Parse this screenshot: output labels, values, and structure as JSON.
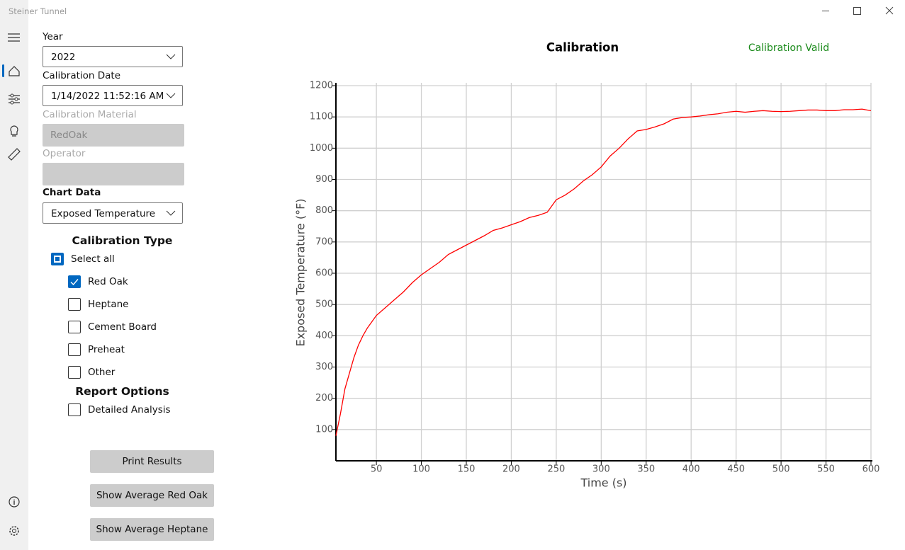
{
  "window": {
    "title": "Steiner Tunnel"
  },
  "form": {
    "year_label": "Year",
    "year": "2022",
    "date_label": "Calibration Date",
    "date": "1/14/2022 11:52:16 AM",
    "material_label": "Calibration Material",
    "material": "RedOak",
    "operator_label": "Operator",
    "chart_data_label": "Chart Data",
    "chart_data_value": "Exposed Temperature",
    "calibration_type_title": "Calibration Type",
    "select_all": "Select all",
    "types": [
      {
        "label": "Red Oak",
        "checked": true
      },
      {
        "label": "Heptane",
        "checked": false
      },
      {
        "label": "Cement Board",
        "checked": false
      },
      {
        "label": "Preheat",
        "checked": false
      },
      {
        "label": "Other",
        "checked": false
      }
    ],
    "report_options_title": "Report Options",
    "detailed_analysis": "Detailed Analysis"
  },
  "buttons": [
    "Print Results",
    "Show Average Red Oak",
    "Show Average Heptane"
  ],
  "status": "Calibration Valid",
  "chart_data": {
    "type": "line",
    "title": "Calibration",
    "x_label": "Time (s)",
    "y_label": "Exposed Temperature (°F)",
    "x": [
      5,
      10,
      15,
      20,
      25,
      30,
      35,
      40,
      45,
      50,
      60,
      70,
      80,
      90,
      100,
      110,
      120,
      130,
      140,
      150,
      160,
      170,
      180,
      190,
      200,
      210,
      220,
      230,
      240,
      250,
      260,
      270,
      280,
      290,
      300,
      310,
      320,
      330,
      340,
      350,
      360,
      370,
      380,
      390,
      400,
      410,
      420,
      430,
      440,
      450,
      460,
      470,
      480,
      490,
      500,
      510,
      520,
      530,
      540,
      550,
      560,
      570,
      580,
      590,
      600
    ],
    "series": [
      {
        "name": "Exposed Temperature",
        "color": "#ff0000",
        "values": [
          80,
          150,
          230,
          280,
          330,
          370,
          400,
          425,
          445,
          465,
          490,
          515,
          540,
          570,
          595,
          615,
          635,
          660,
          675,
          690,
          705,
          720,
          737,
          745,
          755,
          765,
          778,
          785,
          795,
          835,
          850,
          870,
          895,
          915,
          940,
          975,
          1000,
          1030,
          1055,
          1060,
          1068,
          1078,
          1093,
          1098,
          1100,
          1103,
          1107,
          1110,
          1115,
          1118,
          1115,
          1118,
          1120,
          1118,
          1117,
          1118,
          1120,
          1122,
          1122,
          1120,
          1120,
          1123,
          1123,
          1125,
          1120
        ]
      }
    ],
    "xlim": [
      5,
      600
    ],
    "ylim": [
      0,
      1200
    ],
    "xticks": [
      50,
      100,
      150,
      200,
      250,
      300,
      350,
      400,
      450,
      500,
      550,
      600
    ],
    "yticks": [
      100,
      200,
      300,
      400,
      500,
      600,
      700,
      800,
      900,
      1000,
      1100,
      1200
    ],
    "grid": true
  }
}
